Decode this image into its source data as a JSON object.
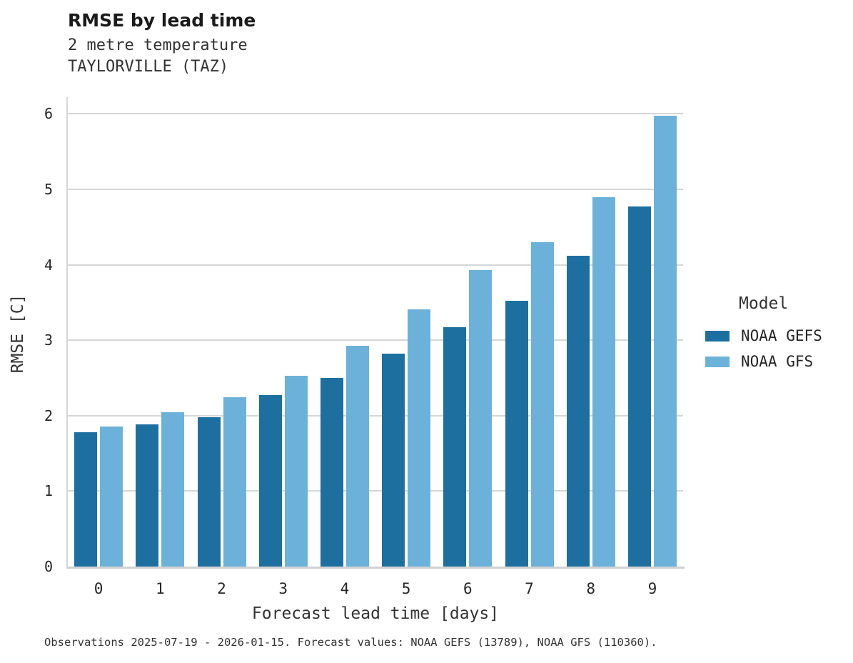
{
  "header": {
    "title": "RMSE by lead time",
    "subtitle_line1": "2 metre temperature",
    "subtitle_line2": "TAYLORVILLE (TAZ)"
  },
  "chart_data": {
    "type": "bar",
    "title": "RMSE by lead time",
    "subtitle": [
      "2 metre temperature",
      "TAYLORVILLE (TAZ)"
    ],
    "categories": [
      "0",
      "1",
      "2",
      "3",
      "4",
      "5",
      "6",
      "7",
      "8",
      "9"
    ],
    "series": [
      {
        "name": "NOAA GEFS",
        "color": "#1d6fa0",
        "values": [
          1.78,
          1.88,
          1.98,
          2.27,
          2.5,
          2.82,
          3.17,
          3.52,
          4.12,
          4.77
        ]
      },
      {
        "name": "NOAA GFS",
        "color": "#6cb1d9",
        "values": [
          1.86,
          2.05,
          2.24,
          2.53,
          2.93,
          3.41,
          3.93,
          4.3,
          4.9,
          5.98
        ]
      }
    ],
    "xlabel": "Forecast lead time [days]",
    "ylabel": "RMSE [C]",
    "yticks": [
      0,
      1,
      2,
      3,
      4,
      5,
      6
    ],
    "ylim": [
      0,
      6.2
    ],
    "grid": true,
    "legend_title": "Model",
    "legend_position": "right"
  },
  "footer": {
    "caption": "Observations 2025-07-19 - 2026-01-15. Forecast values: NOAA GEFS (13789), NOAA GFS (110360)."
  },
  "colors": {
    "gefs_bar": "#1d6fa0",
    "gfs_bar": "#6cb1d9",
    "gridline": "#d6d6d6",
    "axis_spine": "#d2d2d2",
    "title_text": "#1a1a1a",
    "body_text": "#333333"
  }
}
